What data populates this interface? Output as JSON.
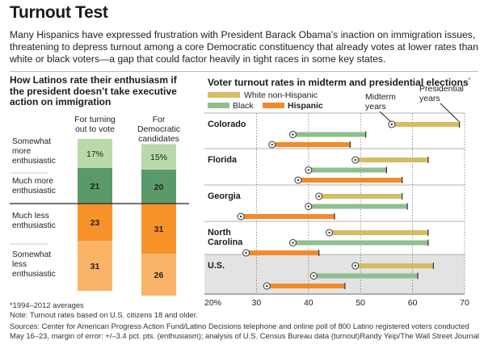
{
  "title": "Turnout Test",
  "intro": "Many Hispanics have expressed frustration with President Barack Obama’s inaction on immigration issues, threatening to depress turnout among a core Democratic constituency that already votes at lower rates than white or black voters—a gap that could factor heavily in tight races in some key states.",
  "left_panel": {
    "title": "How Latinos rate their enthusiasm if the president doesn’t take executive action on immigration",
    "column_headers": [
      "For turning out to vote",
      "For Democratic candidates"
    ],
    "row_labels": [
      "Somewhat more enthusiastic",
      "Much more enthusiastic",
      "Much less enthusiastic",
      "Somewhat less enthusiastic"
    ]
  },
  "right_panel": {
    "title": "Voter turnout rates in midterm and presidential elections",
    "title_mark": "*",
    "legend": {
      "white": "White non-Hispanic",
      "black": "Black",
      "hispanic": "Hispanic"
    },
    "annotations": {
      "midterm": "Midterm years",
      "presidential": "Presidential years"
    }
  },
  "colors": {
    "somewhat_more": "#b9d9ab",
    "much_more": "#5a9a6a",
    "much_less": "#f7922b",
    "somewhat_less": "#f9b468",
    "white": "#d4bd63",
    "black": "#8fbe8f",
    "hispanic": "#f28a2a",
    "us_band": "#e3e3e3"
  },
  "chart_data": [
    {
      "type": "bar",
      "title": "How Latinos rate their enthusiasm if the president doesn’t take executive action on immigration",
      "stacked": true,
      "categories": [
        "For turning out to vote",
        "For Democratic candidates"
      ],
      "series": [
        {
          "name": "Somewhat more enthusiastic",
          "values": [
            17,
            15
          ],
          "labels": [
            "17%",
            "15%"
          ]
        },
        {
          "name": "Much more enthusiastic",
          "values": [
            21,
            20
          ],
          "labels": [
            "21",
            "20"
          ]
        },
        {
          "name": "Much less enthusiastic",
          "values": [
            23,
            31
          ],
          "labels": [
            "23",
            "31"
          ]
        },
        {
          "name": "Somewhat less enthusiastic",
          "values": [
            31,
            26
          ],
          "labels": [
            "31",
            "26"
          ]
        }
      ]
    },
    {
      "type": "bar",
      "title": "Voter turnout rates in midterm and presidential elections",
      "orientation": "horizontal",
      "note": "Each bar runs from the midterm-year rate (circle marker) to the presidential-year rate",
      "categories": [
        "Colorado",
        "Florida",
        "Georgia",
        "North Carolina",
        "U.S."
      ],
      "category_labels": [
        "Colorado",
        "Florida",
        "Georgia",
        "North\nCarolina",
        "U.S."
      ],
      "series": [
        {
          "name": "White non-Hispanic",
          "midterm": [
            56,
            49,
            42,
            44,
            49
          ],
          "presidential": [
            69,
            63,
            58,
            63,
            64
          ]
        },
        {
          "name": "Black",
          "midterm": [
            37,
            40,
            40,
            37,
            41
          ],
          "presidential": [
            51,
            55,
            59,
            63,
            61
          ]
        },
        {
          "name": "Hispanic",
          "midterm": [
            33,
            38,
            27,
            28,
            32
          ],
          "presidential": [
            48,
            58,
            45,
            42,
            47
          ]
        }
      ],
      "xlim": [
        20,
        70
      ],
      "xticks": [
        20,
        30,
        40,
        50,
        60,
        70
      ],
      "xtick_labels": [
        "20%",
        "30",
        "40",
        "50",
        "60",
        "70"
      ],
      "xlabel": "",
      "ylabel": ""
    }
  ],
  "footnotes": [
    "*1994–2012 averages",
    "Note: Turnout rates based on U.S. citizens 18 and older."
  ],
  "sources": "Sources: Center for American Progress Action Fund/Latino Decisions telephone and online poll of 800 Latino registered voters conducted May 16–23, margin of error: +/–3.4 pct. pts. (enthusiasm); analysis of U.S. Census Bureau data (turnout)",
  "credit": "Randy Yeip/The Wall Street Journal"
}
